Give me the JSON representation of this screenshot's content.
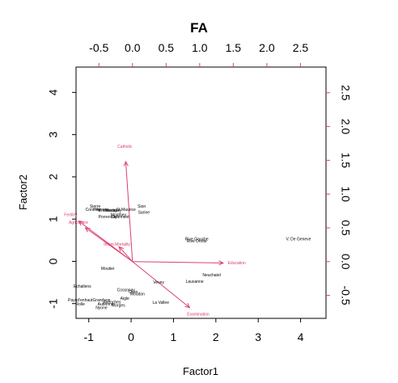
{
  "chart_data": {
    "type": "biplot",
    "title": "FA",
    "xlabel": "Factor1",
    "ylabel": "Factor2",
    "xlim": [
      -1.3,
      4.6
    ],
    "ylim": [
      -1.35,
      4.6
    ],
    "x_ticks": [
      "-1",
      "0",
      "1",
      "2",
      "3",
      "4"
    ],
    "x_tick_values": [
      -1,
      0,
      1,
      2,
      3,
      4
    ],
    "y_ticks": [
      "-1",
      "0",
      "1",
      "2",
      "3",
      "4"
    ],
    "y_tick_values": [
      -1,
      0,
      1,
      2,
      3,
      4
    ],
    "top_ticks": [
      "-0.5",
      "0.0",
      "0.5",
      "1.0",
      "1.5",
      "2.0",
      "2.5"
    ],
    "top_tick_values": [
      -0.5,
      0.0,
      0.5,
      1.0,
      1.5,
      2.0,
      2.5
    ],
    "right_ticks": [
      "-0.5",
      "0.0",
      "0.5",
      "1.0",
      "1.5",
      "2.0",
      "2.5"
    ],
    "right_tick_values": [
      -0.5,
      0.0,
      0.5,
      1.0,
      1.5,
      2.0,
      2.5
    ],
    "loading_scale": [
      -0.84,
      2.88
    ],
    "loading_color": "#d9416f",
    "point_color": "#000000",
    "points": [
      {
        "label": "Sierre",
        "x": -0.85,
        "y": 1.3
      },
      {
        "label": "Conthey",
        "x": -0.9,
        "y": 1.22
      },
      {
        "label": "Herens",
        "x": -0.7,
        "y": 1.22
      },
      {
        "label": "Entremont",
        "x": -0.55,
        "y": 1.2
      },
      {
        "label": "Martigwy",
        "x": -0.42,
        "y": 1.2
      },
      {
        "label": "St Maurice",
        "x": -0.12,
        "y": 1.22
      },
      {
        "label": "Monthey",
        "x": -0.3,
        "y": 1.1
      },
      {
        "label": "Porrentruy",
        "x": -0.55,
        "y": 1.05
      },
      {
        "label": "Delemont",
        "x": -0.25,
        "y": 1.05
      },
      {
        "label": "Sion",
        "x": 0.25,
        "y": 1.3
      },
      {
        "label": "Sarine",
        "x": 0.3,
        "y": 1.15
      },
      {
        "label": "Rive Gauche",
        "x": 1.55,
        "y": 0.52
      },
      {
        "label": "Rive Droite",
        "x": 1.55,
        "y": 0.47
      },
      {
        "label": "V. De Geneve",
        "x": 3.95,
        "y": 0.52
      },
      {
        "label": "Neuchatel",
        "x": 1.9,
        "y": -0.33
      },
      {
        "label": "Lausanne",
        "x": 1.5,
        "y": -0.48
      },
      {
        "label": "Vevey",
        "x": 0.65,
        "y": -0.5
      },
      {
        "label": "Moutier",
        "x": -0.55,
        "y": -0.18
      },
      {
        "label": "Echallens",
        "x": -1.15,
        "y": -0.6
      },
      {
        "label": "Cossonay",
        "x": -0.12,
        "y": -0.68
      },
      {
        "label": "Oron",
        "x": 0.05,
        "y": -0.73
      },
      {
        "label": "Moudon",
        "x": 0.15,
        "y": -0.78
      },
      {
        "label": "Paysd'enhaut",
        "x": -1.2,
        "y": -0.92
      },
      {
        "label": "Grandson",
        "x": -0.7,
        "y": -0.92
      },
      {
        "label": "Aigle",
        "x": -0.15,
        "y": -0.88
      },
      {
        "label": "Avenches",
        "x": -0.45,
        "y": -0.97
      },
      {
        "label": "Aubonne",
        "x": -0.6,
        "y": -1.02
      },
      {
        "label": "Rolle",
        "x": -1.2,
        "y": -1.02
      },
      {
        "label": "Morges",
        "x": -0.3,
        "y": -1.05
      },
      {
        "label": "Nyone",
        "x": -0.7,
        "y": -1.1
      },
      {
        "label": "La Vallee",
        "x": 0.7,
        "y": -0.98
      }
    ],
    "loadings": [
      {
        "label": "Catholic",
        "x": -0.1,
        "y": 1.48
      },
      {
        "label": "Fertility",
        "x": -0.8,
        "y": 0.6
      },
      {
        "label": "Agriculture",
        "x": -0.7,
        "y": 0.5
      },
      {
        "label": "Infant.Mortality",
        "x": -0.2,
        "y": 0.22
      },
      {
        "label": "Education",
        "x": 1.35,
        "y": -0.02
      },
      {
        "label": "Examination",
        "x": 0.85,
        "y": -0.68
      }
    ]
  }
}
